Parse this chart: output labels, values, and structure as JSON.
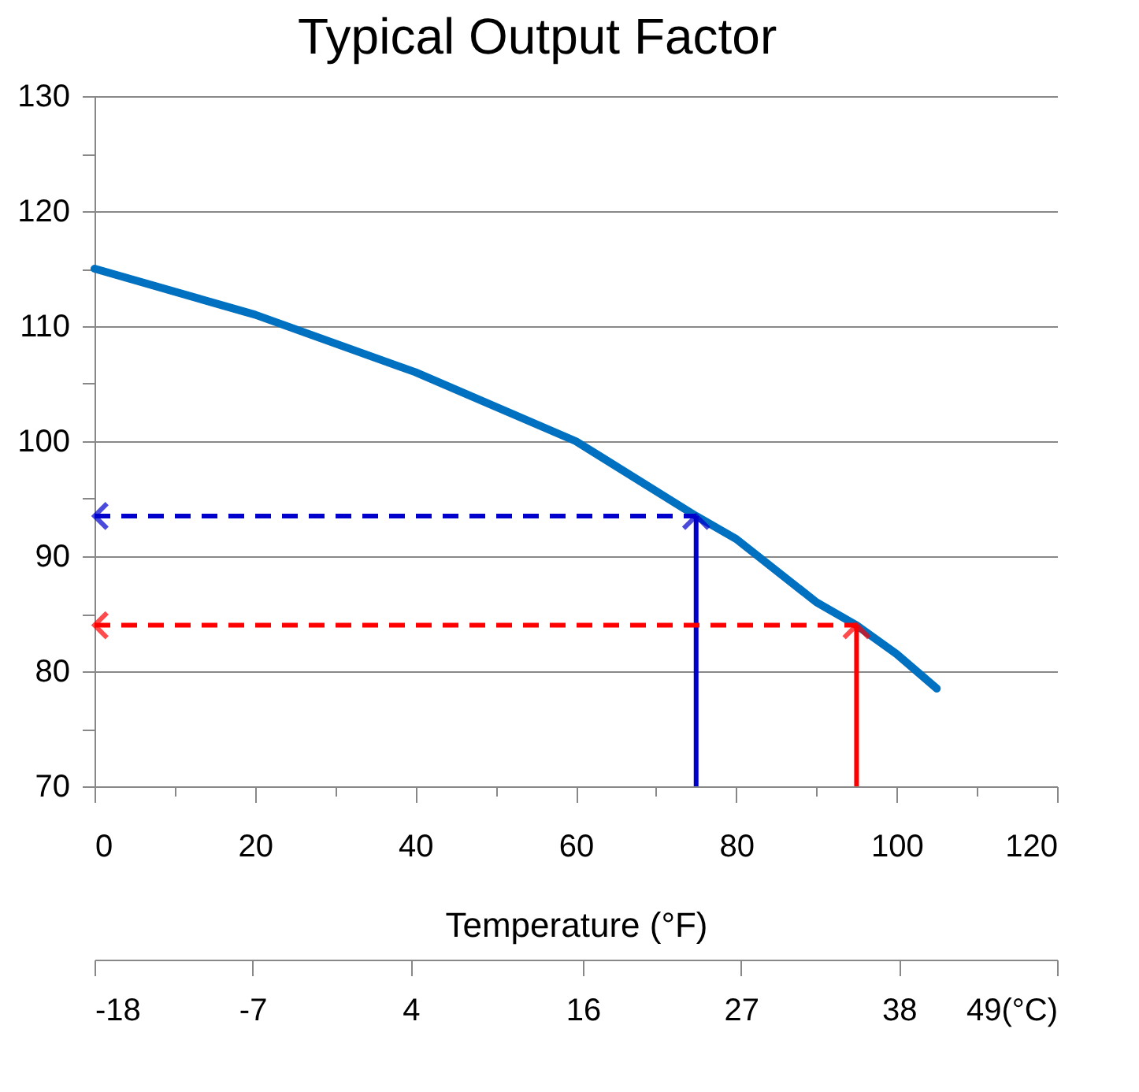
{
  "chart_data": {
    "type": "line",
    "title": "Typical Output Factor",
    "xlabel": "Temperature (°F)",
    "x": [
      0,
      20,
      40,
      60,
      75,
      80,
      90,
      95,
      100,
      105
    ],
    "series": [
      {
        "color": "#0070c0",
        "values": [
          115,
          111,
          106,
          100,
          93.5,
          91.5,
          86,
          84,
          81.5,
          78.5
        ]
      }
    ],
    "xlim": [
      0,
      120
    ],
    "ylim": [
      70,
      130
    ],
    "xticks": [
      0,
      {
        "value": 10,
        "label": null
      },
      20,
      {
        "value": 30,
        "label": null
      },
      40,
      {
        "value": 50,
        "label": null
      },
      60,
      {
        "value": 70,
        "label": null
      },
      80,
      {
        "value": 90,
        "label": null
      },
      100,
      {
        "value": 110,
        "label": null
      },
      120
    ],
    "yticks": [
      70,
      {
        "value": 75,
        "label": null
      },
      80,
      {
        "value": 85,
        "label": null
      },
      90,
      {
        "value": 95,
        "label": null
      },
      100,
      {
        "value": 105,
        "label": null
      },
      110,
      {
        "value": 115,
        "label": null
      },
      120,
      {
        "value": 125,
        "label": null
      },
      130
    ],
    "x2lim": [
      -18,
      49
    ],
    "x2ticks": [
      -18,
      -7,
      4,
      16,
      27,
      38,
      {
        "value": 49,
        "label": "49(°C)"
      }
    ],
    "ref_lines": [
      {
        "axis": "x",
        "value": 75,
        "color": "#0000cc",
        "line_style": "solid"
      },
      {
        "axis": "y",
        "value": 93.5,
        "color": "#0000cc",
        "line_style": "dashed"
      },
      {
        "axis": "x",
        "value": 95,
        "color": "#ff0000",
        "line_style": "solid"
      },
      {
        "axis": "y",
        "value": 84,
        "color": "#ff0000",
        "line_style": "dashed"
      }
    ],
    "grid": "y",
    "marker": "none",
    "line_style": "solid"
  }
}
